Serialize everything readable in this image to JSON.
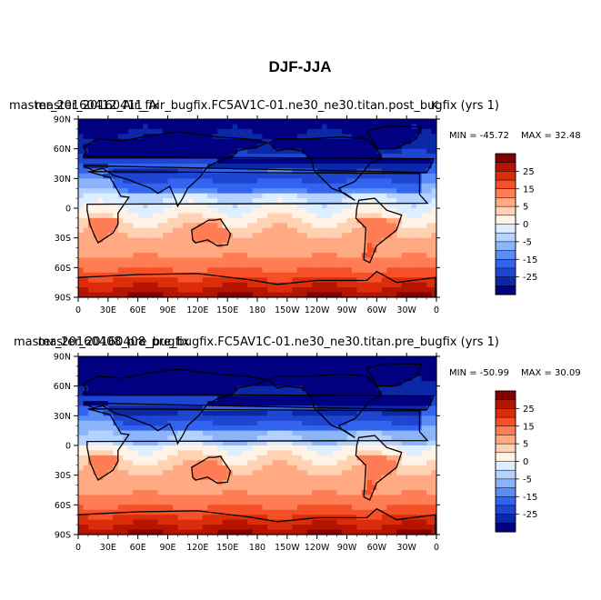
{
  "chart_data": {
    "type": "heatmap",
    "title": "DJF-JJA",
    "panels": [
      {
        "case_title": "master_20160412_Air_fix",
        "run_title": "master_20160411_Air_bugfix.FC5AV1C-01.ne30_ne30.titan.post_bugfix (yrs 1)",
        "variable_unit": "K",
        "min_label": "MIN = -45.72",
        "max_label": "MAX =  32.48",
        "min": -45.72,
        "max": 32.48,
        "cold_shift": 0
      },
      {
        "case_title": "master_20160408_pre_bugfix",
        "run_title": "master_20160408_pre_bugfix.FC5AV1C-01.ne30_ne30.titan.pre_bugfix (yrs 1)",
        "variable_unit": "",
        "min_label": "MIN = -50.99",
        "max_label": "MAX =  30.09",
        "min": -50.99,
        "max": 30.09,
        "cold_shift": 3
      }
    ],
    "x_ticks": [
      "0",
      "30E",
      "60E",
      "90E",
      "120E",
      "150E",
      "180",
      "150W",
      "120W",
      "90W",
      "60W",
      "30W",
      "0"
    ],
    "y_ticks": [
      "90N",
      "60N",
      "30N",
      "0",
      "30S",
      "60S",
      "90S"
    ],
    "xlim": [
      0,
      360
    ],
    "ylim": [
      -90,
      90
    ],
    "colorbar": {
      "levels": [
        -30,
        -25,
        -20,
        -15,
        -10,
        -5,
        -2.5,
        0,
        2.5,
        5,
        10,
        15,
        20,
        25,
        30
      ],
      "labels": [
        "25",
        "15",
        "5",
        "0",
        "-5",
        "-15",
        "-25"
      ],
      "label_values": [
        25,
        15,
        5,
        0,
        -5,
        -15,
        -25
      ],
      "colors": [
        "#000080",
        "#0a28a8",
        "#1e46d2",
        "#3264f0",
        "#5a8cf5",
        "#8cb4fa",
        "#b4d2ff",
        "#dceeff",
        "#fff2e6",
        "#ffd2b4",
        "#ffaa82",
        "#ff7d55",
        "#f55028",
        "#dc2d0a",
        "#b41400",
        "#820000"
      ]
    }
  }
}
